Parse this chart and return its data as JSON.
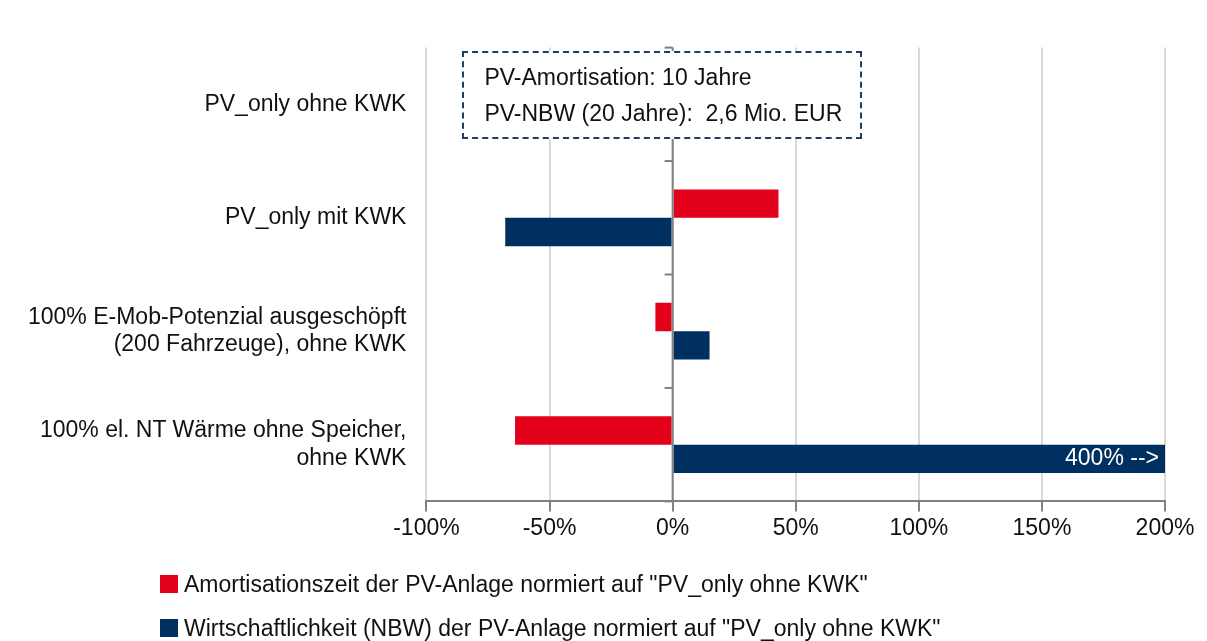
{
  "chart_data": {
    "type": "bar",
    "orientation": "horizontal",
    "categories": [
      "PV_only ohne KWK",
      "PV_only mit KWK",
      "100% E-Mob-Potenzial ausgeschöpft\n(200 Fahrzeuge), ohne KWK",
      "100% el. NT Wärme ohne Speicher,\nohne KWK"
    ],
    "series": [
      {
        "name": "Amortisationszeit der PV-Anlage normiert auf \"PV_only ohne KWK\"",
        "color": "#e2001a",
        "values": [
          0,
          43,
          -7,
          -64
        ]
      },
      {
        "name": "Wirtschaftlichkeit (NBW) der PV-Anlage normiert auf \"PV_only ohne KWK\"",
        "color": "#003060",
        "values": [
          0,
          -68,
          15,
          200
        ]
      }
    ],
    "xlim": [
      -100,
      200
    ],
    "xticks": [
      {
        "value": -100,
        "label": "-100%"
      },
      {
        "value": -50,
        "label": "-50%"
      },
      {
        "value": 0,
        "label": "0%"
      },
      {
        "value": 50,
        "label": "50%"
      },
      {
        "value": 100,
        "label": "100%"
      },
      {
        "value": 150,
        "label": "150%"
      },
      {
        "value": 200,
        "label": "200%"
      }
    ],
    "grid": "x",
    "legend": "bottom",
    "annotations": [
      "PV-Amortisation: 10 Jahre",
      "PV-NBW (20 Jahre):  2,6 Mio. EUR",
      {
        "text": "400% -->",
        "x": 200,
        "y": "100% el. NT Wärme ohne Speicher,\nohne KWK"
      }
    ]
  }
}
